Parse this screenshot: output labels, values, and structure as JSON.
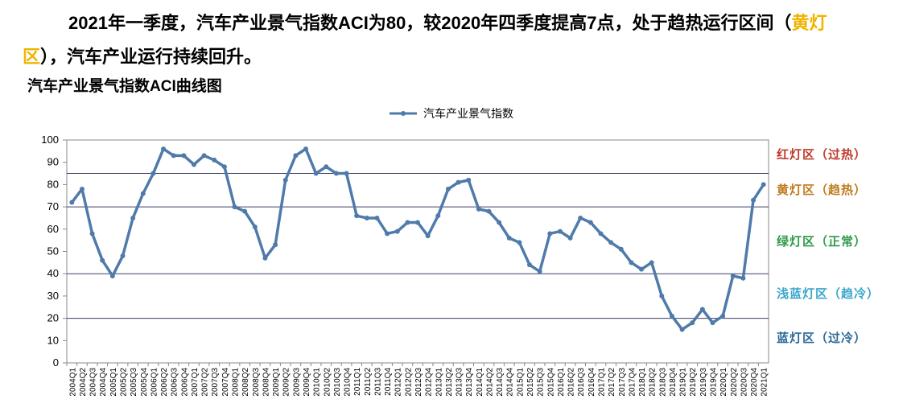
{
  "header": {
    "headline_before": "2021年一季度，汽车产业景气指数ACI为80，较2020年四季度提高7点，处于趋热运行区间（",
    "headline_highlight": "黄灯区",
    "headline_after": "），汽车产业运行持续回升。",
    "subtitle": "汽车产业景气指数ACI曲线图"
  },
  "chart_data": {
    "type": "line",
    "categories": [
      "2004Q1",
      "2004Q2",
      "2004Q3",
      "2004Q4",
      "2005Q1",
      "2005Q2",
      "2005Q3",
      "2005Q4",
      "2006Q1",
      "2006Q2",
      "2006Q3",
      "2006Q4",
      "2007Q1",
      "2007Q2",
      "2007Q3",
      "2007Q4",
      "2008Q1",
      "2008Q2",
      "2008Q3",
      "2008Q4",
      "2009Q1",
      "2009Q2",
      "2009Q3",
      "2009Q4",
      "2010Q1",
      "2010Q2",
      "2010Q3",
      "2010Q4",
      "2011Q1",
      "2011Q2",
      "2011Q3",
      "2011Q4",
      "2012Q1",
      "2012Q2",
      "2012Q3",
      "2012Q4",
      "2013Q1",
      "2013Q2",
      "2013Q3",
      "2013Q4",
      "2014Q1",
      "2014Q2",
      "2014Q3",
      "2014Q4",
      "2015Q1",
      "2015Q2",
      "2015Q3",
      "2015Q4",
      "2016Q1",
      "2016Q2",
      "2016Q3",
      "2016Q4",
      "2017Q1",
      "2017Q2",
      "2017Q3",
      "2017Q4",
      "2018Q1",
      "2018Q2",
      "2018Q3",
      "2018Q4",
      "2019Q1",
      "2019Q2",
      "2019Q3",
      "2019Q4",
      "2020Q1",
      "2020Q2",
      "2020Q3",
      "2020Q4",
      "2021Q1"
    ],
    "series": [
      {
        "name": "汽车产业景气指数",
        "color": "#4f7aaa",
        "values": [
          72,
          78,
          58,
          46,
          39,
          48,
          65,
          76,
          85,
          96,
          93,
          93,
          89,
          93,
          91,
          88,
          70,
          68,
          61,
          47,
          53,
          82,
          93,
          96,
          85,
          88,
          85,
          85,
          66,
          65,
          65,
          58,
          59,
          63,
          63,
          57,
          66,
          78,
          81,
          82,
          69,
          68,
          63,
          56,
          54,
          44,
          41,
          58,
          59,
          56,
          65,
          63,
          58,
          54,
          51,
          45,
          42,
          45,
          30,
          21,
          15,
          18,
          24,
          18,
          21,
          39,
          38,
          73,
          80
        ]
      }
    ],
    "ylim": [
      0,
      100
    ],
    "yticks": [
      0,
      10,
      20,
      30,
      40,
      50,
      60,
      70,
      80,
      90,
      100
    ],
    "zone_lines": [
      85,
      70,
      40,
      20
    ],
    "zones": [
      {
        "label": "红灯区（过热）",
        "color": "#c0392b"
      },
      {
        "label": "黄灯区（趋热）",
        "color": "#c07a1c"
      },
      {
        "label": "绿灯区（正常）",
        "color": "#2e9a4a"
      },
      {
        "label": "浅蓝灯区（趋冷）",
        "color": "#3aa6cc"
      },
      {
        "label": "蓝灯区（过冷）",
        "color": "#2a6a9a"
      }
    ],
    "legend": "top"
  }
}
